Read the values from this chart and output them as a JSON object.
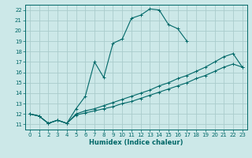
{
  "xlabel": "Humidex (Indice chaleur)",
  "background_color": "#cce8e8",
  "grid_color": "#aacccc",
  "line_color": "#006868",
  "xlim": [
    -0.5,
    23.5
  ],
  "ylim": [
    10.5,
    22.5
  ],
  "xticks": [
    0,
    1,
    2,
    3,
    4,
    5,
    6,
    7,
    8,
    9,
    10,
    11,
    12,
    13,
    14,
    15,
    16,
    17,
    18,
    19,
    20,
    21,
    22,
    23
  ],
  "yticks": [
    11,
    12,
    13,
    14,
    15,
    16,
    17,
    18,
    19,
    20,
    21,
    22
  ],
  "line1_x": [
    0,
    1,
    2,
    3,
    4,
    5,
    6,
    7,
    8,
    9,
    10,
    11,
    12,
    13,
    14,
    15,
    16,
    17
  ],
  "line1_y": [
    12.0,
    11.8,
    11.1,
    11.4,
    11.1,
    12.5,
    13.7,
    17.0,
    15.5,
    18.8,
    19.2,
    21.2,
    21.5,
    22.1,
    22.0,
    20.6,
    20.2,
    19.0
  ],
  "line2_x": [
    0,
    1,
    2,
    3,
    4,
    5,
    6,
    7,
    8,
    9,
    10,
    11,
    12,
    13,
    14,
    15,
    16,
    17,
    18,
    19,
    20,
    21,
    22,
    23
  ],
  "line2_y": [
    12.0,
    11.8,
    11.1,
    11.4,
    11.1,
    12.0,
    12.3,
    12.5,
    12.8,
    13.1,
    13.4,
    13.7,
    14.0,
    14.3,
    14.7,
    15.0,
    15.4,
    15.7,
    16.1,
    16.5,
    17.0,
    17.5,
    17.8,
    16.5
  ],
  "line3_x": [
    0,
    1,
    2,
    3,
    4,
    5,
    6,
    7,
    8,
    9,
    10,
    11,
    12,
    13,
    14,
    15,
    16,
    17,
    18,
    19,
    20,
    21,
    22,
    23
  ],
  "line3_y": [
    12.0,
    11.8,
    11.1,
    11.4,
    11.1,
    11.9,
    12.1,
    12.3,
    12.5,
    12.7,
    13.0,
    13.2,
    13.5,
    13.8,
    14.1,
    14.4,
    14.7,
    15.0,
    15.4,
    15.7,
    16.1,
    16.5,
    16.8,
    16.5
  ]
}
